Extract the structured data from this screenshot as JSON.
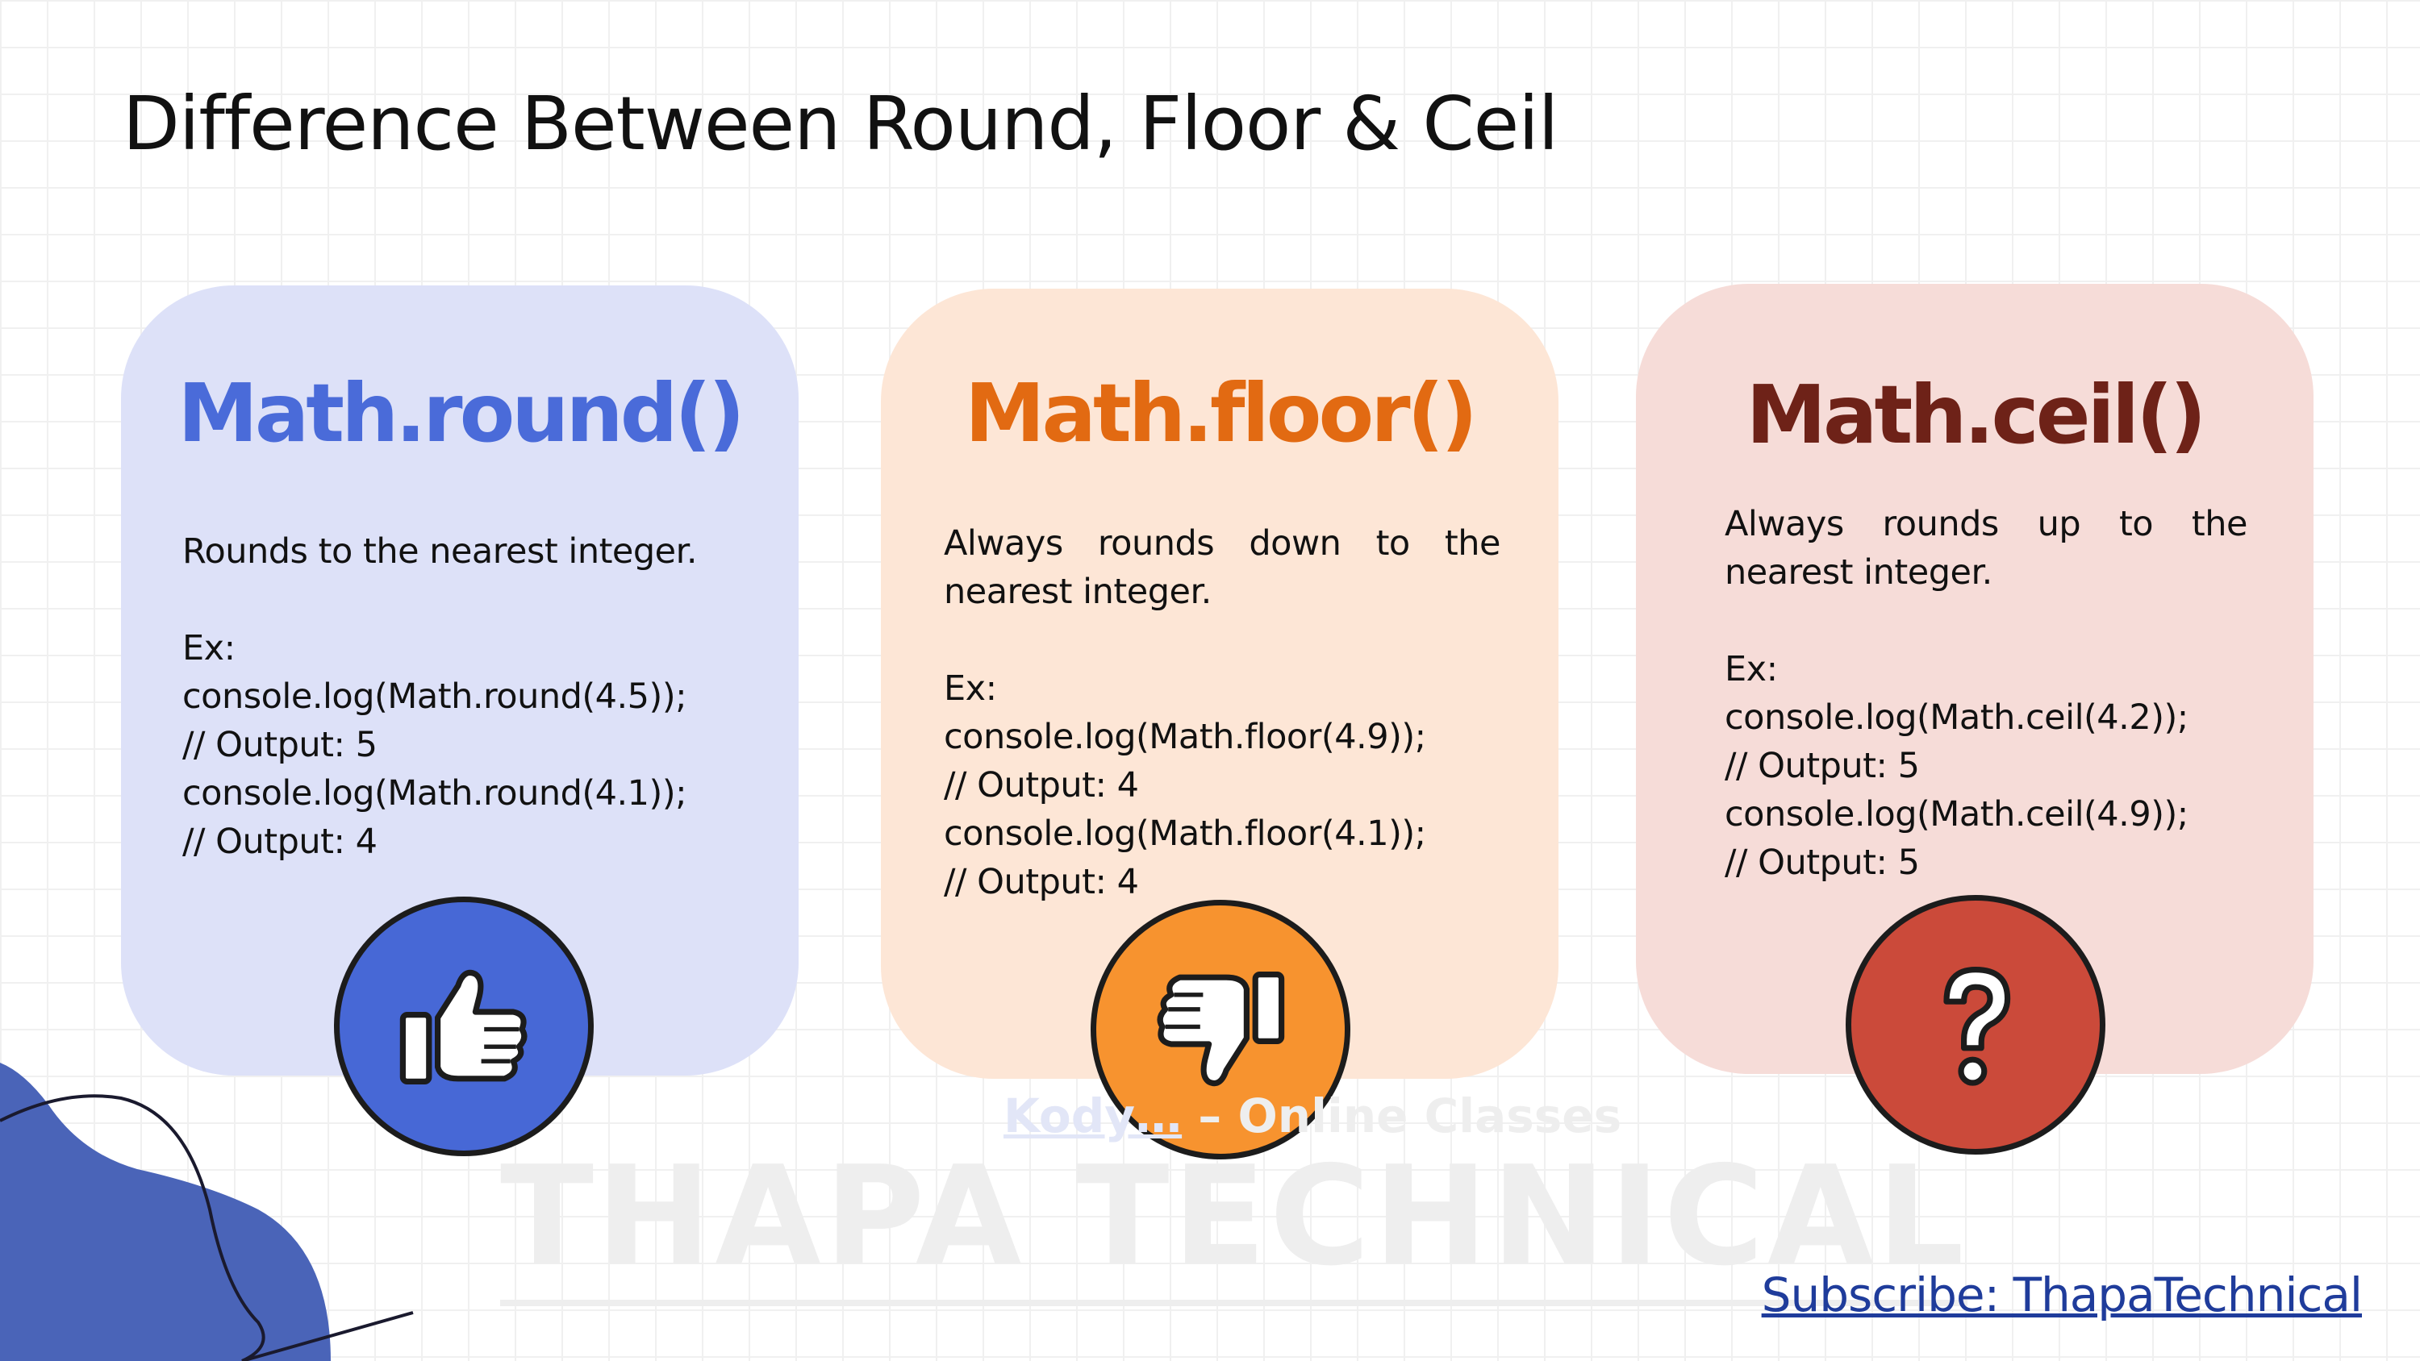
{
  "title": "Difference Between Round, Floor & Ceil",
  "cards": [
    {
      "id": "round",
      "heading": "Math.round()",
      "description": "Rounds to the nearest integer.",
      "example_label": "Ex:",
      "code": [
        "console.log(Math.round(4.5));",
        "// Output: 5",
        "console.log(Math.round(4.1));",
        "// Output: 4"
      ],
      "icon": "thumbs-up-icon",
      "accent": "#4768d6"
    },
    {
      "id": "floor",
      "heading": "Math.floor()",
      "description": "Always rounds down to the nearest integer.",
      "example_label": "Ex:",
      "code": [
        "console.log(Math.floor(4.9));",
        "// Output: 4",
        "console.log(Math.floor(4.1));",
        "// Output: 4"
      ],
      "icon": "thumbs-down-icon",
      "accent": "#f7932f"
    },
    {
      "id": "ceil",
      "heading": "Math.ceil()",
      "description": "Always rounds up to the nearest integer.",
      "example_label": "Ex:",
      "code": [
        "console.log(Math.ceil(4.2));",
        "// Output: 5",
        "console.log(Math.ceil(4.9));",
        "// Output: 5"
      ],
      "icon": "question-mark-icon",
      "accent": "#cb4a3a"
    }
  ],
  "watermark": {
    "brand": "Kody…",
    "tagline": " – Online Classes",
    "main": "THAPA TECHNICAL"
  },
  "subscribe": "Subscribe: ThapaTechnical"
}
